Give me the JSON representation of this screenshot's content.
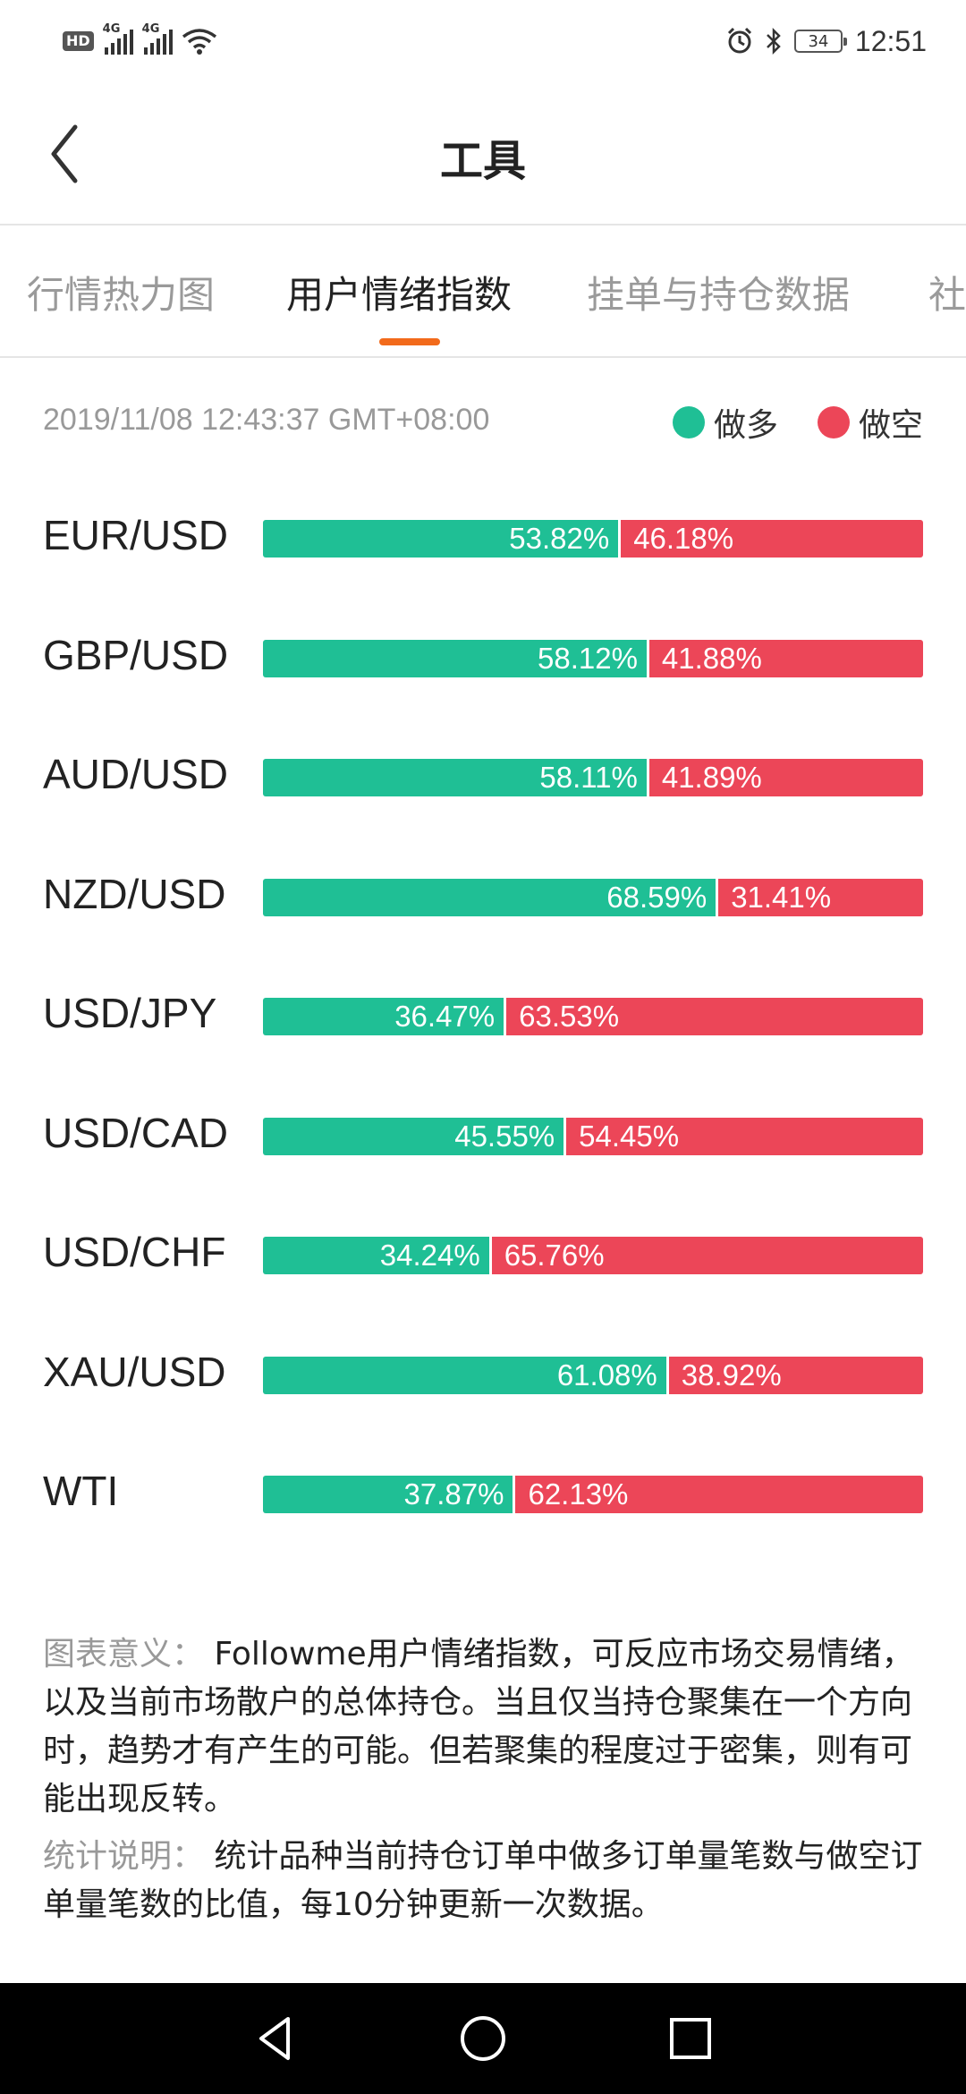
{
  "status_bar": {
    "hd": "HD",
    "sim1": "4G",
    "sim2": "4G",
    "battery": "34",
    "time": "12:51"
  },
  "header": {
    "title": "工具"
  },
  "tabs": [
    {
      "label": "行情热力图",
      "active": false
    },
    {
      "label": "用户情绪指数",
      "active": true
    },
    {
      "label": "挂单与持仓数据",
      "active": false
    },
    {
      "label": "社",
      "active": false
    }
  ],
  "timestamp": "2019/11/08 12:43:37 GMT+08:00",
  "legend": {
    "long_label": "做多",
    "short_label": "做空",
    "long_color": "#1fbf95",
    "short_color": "#ec4658"
  },
  "pairs": [
    {
      "name": "EUR/USD",
      "long": 53.82,
      "short": 46.18,
      "long_text": "53.82%",
      "short_text": "46.18%"
    },
    {
      "name": "GBP/USD",
      "long": 58.12,
      "short": 41.88,
      "long_text": "58.12%",
      "short_text": "41.88%"
    },
    {
      "name": "AUD/USD",
      "long": 58.11,
      "short": 41.89,
      "long_text": "58.11%",
      "short_text": "41.89%"
    },
    {
      "name": "NZD/USD",
      "long": 68.59,
      "short": 31.41,
      "long_text": "68.59%",
      "short_text": "31.41%"
    },
    {
      "name": "USD/JPY",
      "long": 36.47,
      "short": 63.53,
      "long_text": "36.47%",
      "short_text": "63.53%"
    },
    {
      "name": "USD/CAD",
      "long": 45.55,
      "short": 54.45,
      "long_text": "45.55%",
      "short_text": "54.45%"
    },
    {
      "name": "USD/CHF",
      "long": 34.24,
      "short": 65.76,
      "long_text": "34.24%",
      "short_text": "65.76%"
    },
    {
      "name": "XAU/USD",
      "long": 61.08,
      "short": 38.92,
      "long_text": "61.08%",
      "short_text": "38.92%"
    },
    {
      "name": "WTI",
      "long": 37.87,
      "short": 62.13,
      "long_text": "37.87%",
      "short_text": "62.13%"
    }
  ],
  "notes": {
    "meaning_label": "图表意义：",
    "meaning_text": "Followme用户情绪指数，可反应市场交易情绪，以及当前市场散户的总体持仓。当且仅当持仓聚集在一个方向时，趋势才有产生的可能。但若聚集的程度过于密集，则有可能出现反转。",
    "stats_label": "统计说明：",
    "stats_text": "统计品种当前持仓订单中做多订单量笔数与做空订单量笔数的比值，每10分钟更新一次数据。"
  }
}
